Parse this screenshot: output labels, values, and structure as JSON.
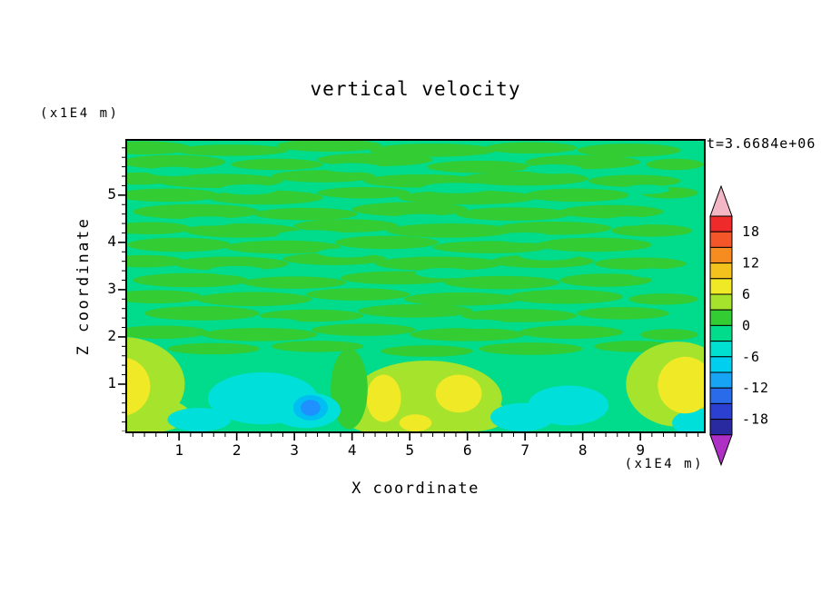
{
  "title": "vertical velocity",
  "time_label": "t=3.6684e+06",
  "axes": {
    "x_label": "X coordinate",
    "y_label": "Z coordinate",
    "x_unit": "(x1E4 m)",
    "y_unit": "(x1E4 m)",
    "x_ticks": [
      "1",
      "2",
      "3",
      "4",
      "5",
      "6",
      "7",
      "8",
      "9"
    ],
    "y_ticks": [
      "1",
      "2",
      "3",
      "4",
      "5"
    ],
    "x_range": [
      0.1,
      10.1
    ],
    "y_range": [
      0,
      6.15
    ],
    "minor_tick_step": 0.2
  },
  "colorbar": {
    "labels": [
      "18",
      "12",
      "6",
      "0",
      "-6",
      "-12",
      "-18"
    ],
    "level_min": -21,
    "level_max": 21,
    "level_step": 3,
    "top_arrow_color": "#F2B6C4",
    "bottom_arrow_color": "#AE2FC4",
    "segments_top_to_bottom": [
      "#EE2A2A",
      "#F4562A",
      "#F68C1F",
      "#F3C21D",
      "#EFE926",
      "#A5E32C",
      "#33CC33",
      "#00DB8C",
      "#00E0D0",
      "#00CFEF",
      "#18A4F5",
      "#2A6BEA",
      "#2B3FD0",
      "#2A2AA0"
    ]
  },
  "chart_data": {
    "type": "filled-contour",
    "title": "vertical velocity",
    "xlabel": "X coordinate (x1E4 m)",
    "ylabel": "Z coordinate (x1E4 m)",
    "time_annotation": "t=3.6684e+06",
    "xlim": [
      0.1,
      10.1
    ],
    "ylim": [
      0,
      6.15
    ],
    "contour_interval": 3,
    "contour_levels_range": [
      -21,
      21
    ],
    "base_color": "#00DB8C",
    "streak_color": "#33CC33",
    "palette": {
      "green": "#33CC33",
      "spring": "#00DB8C",
      "ygreen": "#A5E32C",
      "yellow": "#EFE926",
      "cyan": "#00DFDA",
      "sky": "#00BDF2",
      "dodger": "#1E90FF"
    },
    "streaks": [
      [
        0.4,
        6.0,
        0.8,
        0.14
      ],
      [
        1.9,
        5.95,
        1.0,
        0.12
      ],
      [
        3.6,
        6.05,
        0.9,
        0.13
      ],
      [
        5.4,
        5.95,
        1.1,
        0.14
      ],
      [
        7.1,
        6.0,
        0.8,
        0.12
      ],
      [
        8.8,
        5.95,
        0.9,
        0.14
      ],
      [
        0.9,
        5.7,
        0.9,
        0.15
      ],
      [
        2.7,
        5.65,
        0.8,
        0.12
      ],
      [
        4.4,
        5.75,
        1.0,
        0.14
      ],
      [
        6.2,
        5.6,
        0.9,
        0.13
      ],
      [
        8.0,
        5.7,
        1.0,
        0.15
      ],
      [
        9.6,
        5.65,
        0.5,
        0.12
      ],
      [
        0.3,
        5.35,
        0.6,
        0.13
      ],
      [
        1.7,
        5.3,
        1.1,
        0.15
      ],
      [
        3.5,
        5.4,
        0.9,
        0.13
      ],
      [
        5.2,
        5.3,
        1.0,
        0.14
      ],
      [
        7.0,
        5.35,
        1.1,
        0.15
      ],
      [
        8.9,
        5.3,
        0.8,
        0.13
      ],
      [
        0.8,
        5.0,
        0.9,
        0.14
      ],
      [
        2.5,
        4.95,
        1.0,
        0.15
      ],
      [
        4.2,
        5.05,
        0.8,
        0.12
      ],
      [
        6.0,
        4.95,
        1.2,
        0.15
      ],
      [
        7.9,
        5.0,
        0.9,
        0.14
      ],
      [
        9.5,
        5.05,
        0.5,
        0.12
      ],
      [
        1.3,
        4.65,
        1.1,
        0.16
      ],
      [
        3.2,
        4.6,
        0.9,
        0.13
      ],
      [
        5.0,
        4.7,
        1.0,
        0.15
      ],
      [
        6.8,
        4.6,
        1.0,
        0.14
      ],
      [
        8.5,
        4.65,
        0.9,
        0.14
      ],
      [
        0.5,
        4.3,
        0.7,
        0.13
      ],
      [
        2.1,
        4.25,
        1.0,
        0.15
      ],
      [
        3.9,
        4.35,
        0.9,
        0.14
      ],
      [
        5.7,
        4.25,
        1.1,
        0.15
      ],
      [
        7.5,
        4.3,
        1.0,
        0.14
      ],
      [
        9.2,
        4.25,
        0.7,
        0.13
      ],
      [
        1.0,
        3.95,
        0.9,
        0.15
      ],
      [
        2.8,
        3.9,
        1.0,
        0.14
      ],
      [
        4.6,
        4.0,
        0.9,
        0.14
      ],
      [
        6.4,
        3.9,
        1.0,
        0.13
      ],
      [
        8.2,
        3.95,
        1.0,
        0.15
      ],
      [
        0.4,
        3.6,
        0.7,
        0.13
      ],
      [
        1.9,
        3.55,
        1.0,
        0.15
      ],
      [
        3.7,
        3.65,
        0.9,
        0.13
      ],
      [
        5.5,
        3.55,
        1.1,
        0.15
      ],
      [
        7.3,
        3.6,
        0.9,
        0.14
      ],
      [
        9.0,
        3.55,
        0.8,
        0.13
      ],
      [
        1.2,
        3.2,
        1.0,
        0.15
      ],
      [
        3.0,
        3.15,
        0.9,
        0.13
      ],
      [
        4.8,
        3.25,
        1.0,
        0.14
      ],
      [
        6.6,
        3.15,
        1.0,
        0.14
      ],
      [
        8.4,
        3.2,
        0.8,
        0.14
      ],
      [
        0.6,
        2.85,
        0.8,
        0.14
      ],
      [
        2.3,
        2.8,
        1.0,
        0.15
      ],
      [
        4.1,
        2.9,
        0.9,
        0.13
      ],
      [
        5.9,
        2.8,
        1.0,
        0.14
      ],
      [
        7.7,
        2.85,
        1.0,
        0.15
      ],
      [
        9.4,
        2.8,
        0.6,
        0.12
      ],
      [
        1.4,
        2.5,
        1.0,
        0.15
      ],
      [
        3.3,
        2.45,
        0.9,
        0.13
      ],
      [
        5.1,
        2.55,
        1.0,
        0.14
      ],
      [
        6.9,
        2.45,
        1.0,
        0.14
      ],
      [
        8.7,
        2.5,
        0.8,
        0.13
      ],
      [
        0.7,
        2.1,
        0.8,
        0.14
      ],
      [
        2.4,
        2.05,
        1.0,
        0.14
      ],
      [
        4.2,
        2.15,
        0.9,
        0.13
      ],
      [
        6.0,
        2.05,
        1.0,
        0.14
      ],
      [
        7.8,
        2.1,
        0.9,
        0.14
      ],
      [
        9.5,
        2.05,
        0.5,
        0.12
      ],
      [
        1.6,
        1.75,
        0.8,
        0.12
      ],
      [
        3.4,
        1.8,
        0.8,
        0.12
      ],
      [
        5.3,
        1.7,
        0.8,
        0.12
      ],
      [
        7.1,
        1.75,
        0.9,
        0.13
      ],
      [
        8.9,
        1.8,
        0.7,
        0.12
      ]
    ],
    "holes": [
      [
        0.9,
        5.5,
        0.45,
        0.1
      ],
      [
        2.2,
        5.12,
        0.5,
        0.11
      ],
      [
        4.0,
        5.58,
        0.5,
        0.1
      ],
      [
        5.8,
        5.15,
        0.6,
        0.11
      ],
      [
        7.5,
        5.55,
        0.5,
        0.1
      ],
      [
        9.1,
        5.12,
        0.4,
        0.1
      ],
      [
        1.5,
        4.45,
        0.5,
        0.1
      ],
      [
        3.3,
        4.15,
        0.6,
        0.11
      ],
      [
        5.2,
        4.5,
        0.5,
        0.1
      ],
      [
        7.0,
        4.1,
        0.5,
        0.11
      ],
      [
        8.8,
        4.45,
        0.4,
        0.1
      ],
      [
        2.0,
        3.4,
        0.5,
        0.1
      ],
      [
        3.9,
        3.78,
        0.5,
        0.1
      ],
      [
        5.6,
        3.35,
        0.5,
        0.11
      ],
      [
        7.4,
        3.72,
        0.5,
        0.1
      ],
      [
        9.2,
        3.35,
        0.4,
        0.1
      ],
      [
        2.6,
        2.3,
        0.5,
        0.1
      ],
      [
        6.2,
        2.27,
        0.5,
        0.1
      ]
    ],
    "features": [
      {
        "c": "ygreen",
        "x": 0.0,
        "z": 1.0,
        "rx": 1.1,
        "rz": 1.0
      },
      {
        "c": "ygreen",
        "x": 0.3,
        "z": 0.35,
        "rx": 0.9,
        "rz": 0.4
      },
      {
        "c": "yellow",
        "x": 0.0,
        "z": 0.95,
        "rx": 0.5,
        "rz": 0.62
      },
      {
        "c": "ygreen",
        "x": 5.3,
        "z": 0.7,
        "rx": 1.3,
        "rz": 0.8
      },
      {
        "c": "ygreen",
        "x": 4.5,
        "z": 0.4,
        "rx": 0.7,
        "rz": 0.45
      },
      {
        "c": "ygreen",
        "x": 6.1,
        "z": 0.35,
        "rx": 0.6,
        "rz": 0.35
      },
      {
        "c": "yellow",
        "x": 4.55,
        "z": 0.7,
        "rx": 0.3,
        "rz": 0.5
      },
      {
        "c": "yellow",
        "x": 5.85,
        "z": 0.8,
        "rx": 0.4,
        "rz": 0.4
      },
      {
        "c": "yellow",
        "x": 5.1,
        "z": 0.18,
        "rx": 0.28,
        "rz": 0.18
      },
      {
        "c": "green",
        "x": 3.95,
        "z": 0.9,
        "rx": 0.32,
        "rz": 0.85
      },
      {
        "c": "cyan",
        "x": 2.45,
        "z": 0.7,
        "rx": 0.95,
        "rz": 0.55
      },
      {
        "c": "cyan",
        "x": 3.2,
        "z": 0.45,
        "rx": 0.6,
        "rz": 0.38
      },
      {
        "c": "cyan",
        "x": 1.35,
        "z": 0.25,
        "rx": 0.55,
        "rz": 0.25
      },
      {
        "c": "cyan",
        "x": 6.95,
        "z": 0.3,
        "rx": 0.55,
        "rz": 0.3
      },
      {
        "c": "cyan",
        "x": 7.75,
        "z": 0.55,
        "rx": 0.7,
        "rz": 0.42
      },
      {
        "c": "sky",
        "x": 3.28,
        "z": 0.5,
        "rx": 0.3,
        "rz": 0.27
      },
      {
        "c": "dodger",
        "x": 3.28,
        "z": 0.5,
        "rx": 0.17,
        "rz": 0.17
      },
      {
        "c": "ygreen",
        "x": 9.65,
        "z": 1.0,
        "rx": 0.9,
        "rz": 0.9
      },
      {
        "c": "cyan",
        "x": 10.05,
        "z": 0.18,
        "rx": 0.5,
        "rz": 0.3
      },
      {
        "c": "yellow",
        "x": 9.78,
        "z": 0.98,
        "rx": 0.48,
        "rz": 0.6
      }
    ]
  }
}
